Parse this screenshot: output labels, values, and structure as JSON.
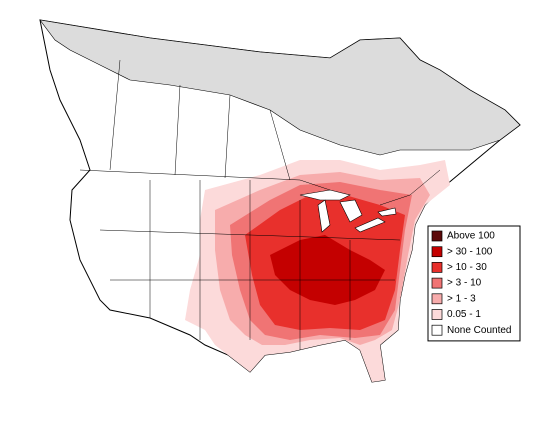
{
  "legend": {
    "items": [
      {
        "label": "Above 100",
        "color": "#5c0a0a"
      },
      {
        "label": "> 30 - 100",
        "color": "#c40000"
      },
      {
        "label": "> 10 - 30",
        "color": "#e8302c"
      },
      {
        "label": "> 3 - 10",
        "color": "#f07474"
      },
      {
        "label": "> 1 - 3",
        "color": "#f7acac"
      },
      {
        "label": "0.05 - 1",
        "color": "#fcdada"
      },
      {
        "label": "None Counted",
        "color": "#ffffff"
      }
    ]
  }
}
